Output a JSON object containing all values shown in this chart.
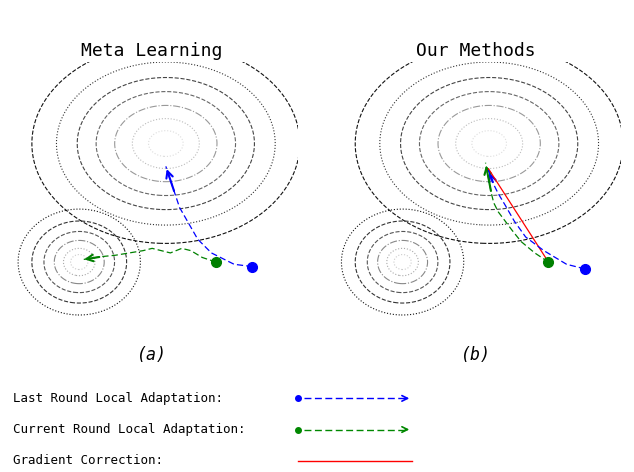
{
  "title_left": "Meta Learning",
  "title_right": "Our Methods",
  "label_a": "(a)",
  "label_b": "(b)",
  "legend_labels": [
    "Last Round Local Adaptation:",
    "Current Round Local Adaptation:",
    "Gradient Correction:"
  ],
  "legend_colors": [
    "#0000ff",
    "#008800",
    "#ff0000"
  ],
  "fig_bg": "#ffffff",
  "contour_linestyles": [
    "dotted",
    "dotted",
    "dashdot",
    "dashed",
    "dashed",
    "dotted",
    "dashed"
  ],
  "contour_linewidths": [
    0.7,
    0.7,
    0.7,
    0.9,
    0.9,
    0.7,
    0.9
  ],
  "contour_colors": [
    "#cccccc",
    "#aaaaaa",
    "#888888",
    "#555555",
    "#333333",
    "#999999",
    "#222222"
  ]
}
